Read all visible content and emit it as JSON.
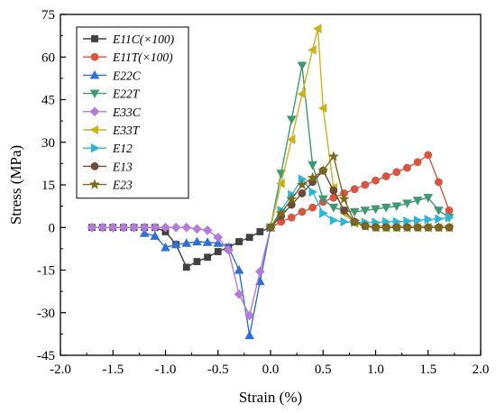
{
  "chart_data": {
    "type": "line",
    "title": "",
    "xlabel": "Strain (%)",
    "ylabel": "Stress (MPa)",
    "xlim": [
      -2.0,
      2.0
    ],
    "ylim": [
      -45,
      75
    ],
    "xticks": [
      "-2.0",
      "-1.5",
      "-1.0",
      "-0.5",
      "0.0",
      "0.5",
      "1.0",
      "1.5",
      "2.0"
    ],
    "yticks": [
      "-45",
      "-30",
      "-15",
      "0",
      "15",
      "30",
      "45",
      "60",
      "75"
    ],
    "grid": false,
    "legend_position": "top-left",
    "series": [
      {
        "name": "E11C(×100)",
        "color": "#404040",
        "marker": "square",
        "x": [
          -1.7,
          -1.6,
          -1.5,
          -1.4,
          -1.3,
          -1.2,
          -1.1,
          -1.0,
          -0.9,
          -0.8,
          -0.7,
          -0.6,
          -0.5,
          -0.4,
          -0.3,
          -0.2,
          -0.1,
          0.0
        ],
        "y": [
          0,
          0,
          0,
          0,
          0,
          0,
          0,
          -1.5,
          -6,
          -14,
          -12,
          -10.5,
          -8.5,
          -7,
          -5,
          -3.5,
          -1.5,
          0
        ]
      },
      {
        "name": "E11T(×100)",
        "color": "#d9553f",
        "marker": "circle",
        "x": [
          0.0,
          0.1,
          0.2,
          0.3,
          0.4,
          0.5,
          0.6,
          0.7,
          0.8,
          0.9,
          1.0,
          1.1,
          1.2,
          1.3,
          1.4,
          1.5,
          1.6,
          1.7
        ],
        "y": [
          0,
          2,
          3.5,
          5.5,
          7,
          9,
          10.5,
          12,
          13.5,
          15,
          16.5,
          18,
          19.5,
          21,
          23,
          25.5,
          16,
          6
        ]
      },
      {
        "name": "E22C",
        "color": "#2f6fd6",
        "marker": "triangle-up",
        "x": [
          -1.2,
          -1.1,
          -1.0,
          -0.9,
          -0.8,
          -0.7,
          -0.6,
          -0.5,
          -0.4,
          -0.3,
          -0.2,
          -0.1,
          0.0
        ],
        "y": [
          -2,
          -3,
          -7,
          -6,
          -5.5,
          -5,
          -5.2,
          -5.5,
          -7,
          -15,
          -38,
          -19,
          0
        ]
      },
      {
        "name": "E22T",
        "color": "#3f9970",
        "marker": "triangle-down",
        "x": [
          0.0,
          0.1,
          0.2,
          0.3,
          0.4,
          0.5,
          0.6,
          0.7,
          0.8,
          0.9,
          1.0,
          1.1,
          1.2,
          1.3,
          1.4,
          1.5,
          1.6,
          1.7
        ],
        "y": [
          0,
          19,
          38,
          57,
          22,
          10,
          7,
          6,
          5.5,
          6,
          6.5,
          7,
          7.5,
          8.5,
          9.5,
          10.5,
          6,
          3.5
        ]
      },
      {
        "name": "E33C",
        "color": "#b57bd8",
        "marker": "diamond",
        "x": [
          -1.7,
          -1.6,
          -1.5,
          -1.4,
          -1.3,
          -1.2,
          -1.1,
          -1.0,
          -0.9,
          -0.8,
          -0.7,
          -0.6,
          -0.5,
          -0.4,
          -0.3,
          -0.2,
          -0.1,
          0.0
        ],
        "y": [
          0,
          0,
          0,
          0,
          0,
          0,
          0,
          0,
          0,
          0,
          -0.5,
          -1,
          -3.5,
          -8,
          -23.5,
          -31,
          -15.5,
          0
        ]
      },
      {
        "name": "E33T",
        "color": "#c9b420",
        "marker": "triangle-left",
        "x": [
          0.0,
          0.1,
          0.2,
          0.3,
          0.4,
          0.45,
          0.5,
          0.6,
          0.7,
          0.8,
          0.9,
          1.0,
          1.1,
          1.2,
          1.3,
          1.4,
          1.5,
          1.6,
          1.7
        ],
        "y": [
          0,
          15.5,
          31,
          47,
          62.5,
          70,
          42,
          14,
          5,
          1.5,
          0.5,
          0,
          0,
          0,
          0,
          0,
          0,
          0,
          0
        ]
      },
      {
        "name": "E12",
        "color": "#2bb6d8",
        "marker": "triangle-right",
        "x": [
          0.0,
          0.1,
          0.2,
          0.3,
          0.4,
          0.5,
          0.6,
          0.7,
          0.8,
          0.9,
          1.0,
          1.1,
          1.2,
          1.3,
          1.4,
          1.5,
          1.6,
          1.7
        ],
        "y": [
          0,
          6,
          11.5,
          17,
          12.5,
          5,
          2.5,
          2,
          1.8,
          1.8,
          1.8,
          2,
          2,
          2.2,
          2.5,
          2.8,
          3,
          3.5
        ]
      },
      {
        "name": "E13",
        "color": "#6e4a3c",
        "marker": "circle",
        "x": [
          0.0,
          0.1,
          0.2,
          0.3,
          0.4,
          0.5,
          0.6,
          0.7,
          0.8,
          0.9,
          1.0,
          1.1,
          1.2,
          1.3,
          1.4,
          1.5,
          1.6,
          1.7
        ],
        "y": [
          0,
          4,
          8,
          12,
          16,
          20,
          13,
          6,
          2,
          0.5,
          0,
          0,
          0,
          0,
          0,
          0,
          0,
          0
        ]
      },
      {
        "name": "E23",
        "color": "#7a6a1a",
        "marker": "star",
        "x": [
          0.0,
          0.1,
          0.2,
          0.3,
          0.4,
          0.5,
          0.6,
          0.7,
          0.8,
          0.9,
          1.0,
          1.1,
          1.2,
          1.3,
          1.4,
          1.5,
          1.6,
          1.7
        ],
        "y": [
          0,
          5,
          10,
          15,
          17.5,
          20,
          25,
          10,
          2,
          0.5,
          0,
          0,
          0,
          0,
          0,
          0,
          0,
          0
        ]
      }
    ]
  }
}
